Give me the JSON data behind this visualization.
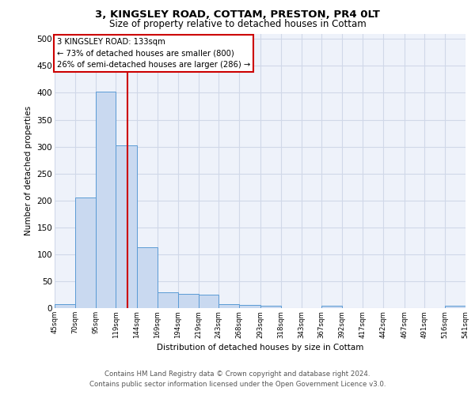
{
  "title": "3, KINGSLEY ROAD, COTTAM, PRESTON, PR4 0LT",
  "subtitle": "Size of property relative to detached houses in Cottam",
  "xlabel": "Distribution of detached houses by size in Cottam",
  "ylabel": "Number of detached properties",
  "bar_edges": [
    45,
    70,
    95,
    119,
    144,
    169,
    194,
    219,
    243,
    268,
    293,
    318,
    343,
    367,
    392,
    417,
    442,
    467,
    491,
    516,
    541
  ],
  "bar_heights": [
    8,
    205,
    402,
    303,
    113,
    30,
    27,
    25,
    7,
    6,
    5,
    0,
    0,
    5,
    0,
    0,
    0,
    0,
    0,
    5
  ],
  "bar_color": "#c9d9f0",
  "bar_edge_color": "#5b9bd5",
  "grid_color": "#d0d8e8",
  "background_color": "#eef2fa",
  "vline_x": 133,
  "vline_color": "#cc0000",
  "annotation_text": "3 KINGSLEY ROAD: 133sqm\n← 73% of detached houses are smaller (800)\n26% of semi-detached houses are larger (286) →",
  "annotation_box_color": "#ffffff",
  "annotation_box_edge_color": "#cc0000",
  "footer_text": "Contains HM Land Registry data © Crown copyright and database right 2024.\nContains public sector information licensed under the Open Government Licence v3.0.",
  "ylim": [
    0,
    510
  ],
  "yticks": [
    0,
    50,
    100,
    150,
    200,
    250,
    300,
    350,
    400,
    450,
    500
  ],
  "tick_labels": [
    "45sqm",
    "70sqm",
    "95sqm",
    "119sqm",
    "144sqm",
    "169sqm",
    "194sqm",
    "219sqm",
    "243sqm",
    "268sqm",
    "293sqm",
    "318sqm",
    "343sqm",
    "367sqm",
    "392sqm",
    "417sqm",
    "442sqm",
    "467sqm",
    "491sqm",
    "516sqm",
    "541sqm"
  ]
}
